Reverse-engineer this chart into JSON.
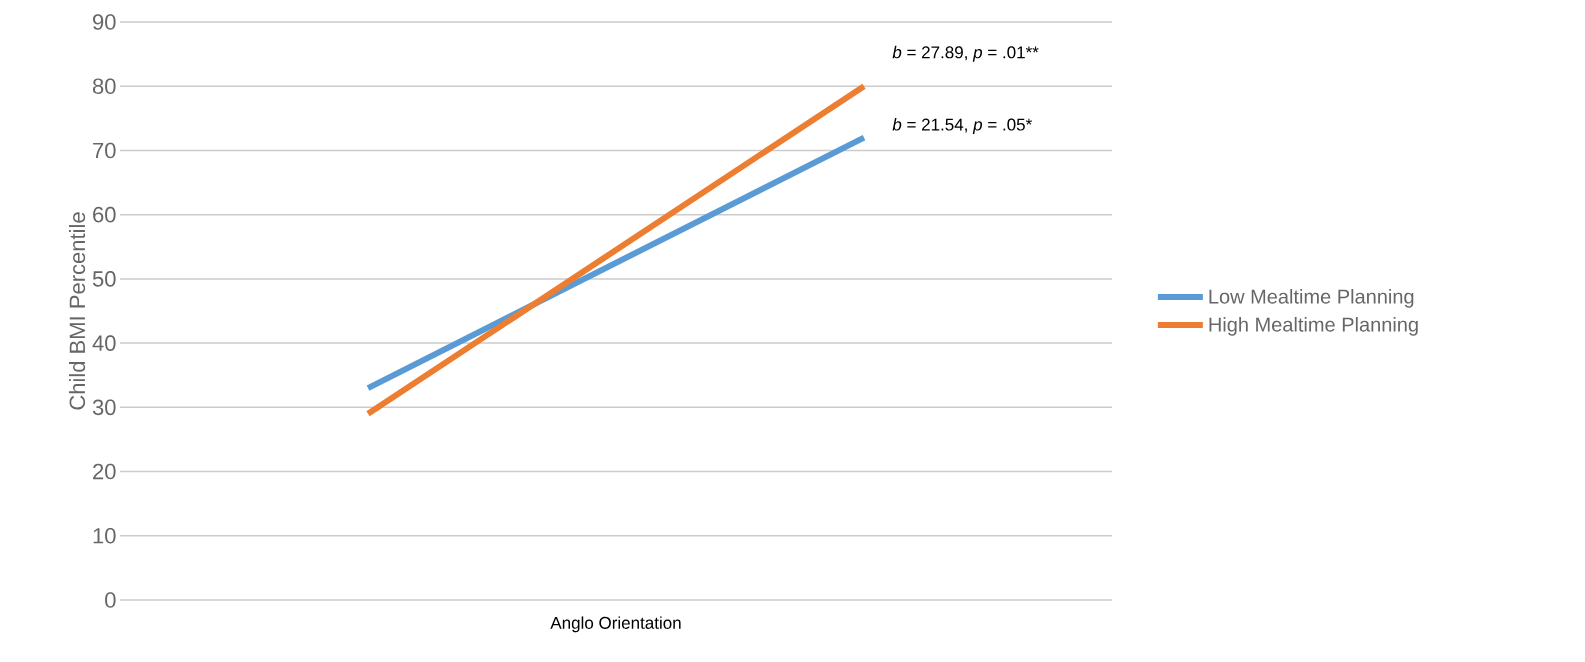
{
  "chart_data": {
    "type": "line",
    "xlabel": "Anglo Orientation",
    "ylabel": "Child BMI Percentile",
    "categories": [
      null,
      null
    ],
    "series": [
      {
        "name": "Low Mealtime Planning",
        "color": "#5b9bd5",
        "values": [
          33,
          72
        ]
      },
      {
        "name": "High Mealtime Planning",
        "color": "#ed7d31",
        "values": [
          29,
          80
        ]
      }
    ],
    "ylim": [
      0,
      90
    ],
    "yticks": [
      0,
      10,
      20,
      30,
      40,
      50,
      60,
      70,
      80,
      90
    ],
    "grid": "y",
    "legend": "right",
    "marker": "none",
    "annotations": [
      "*b* = 27.89, *p* = .01**",
      "*b* = 21.54, *p* = .05*"
    ]
  }
}
